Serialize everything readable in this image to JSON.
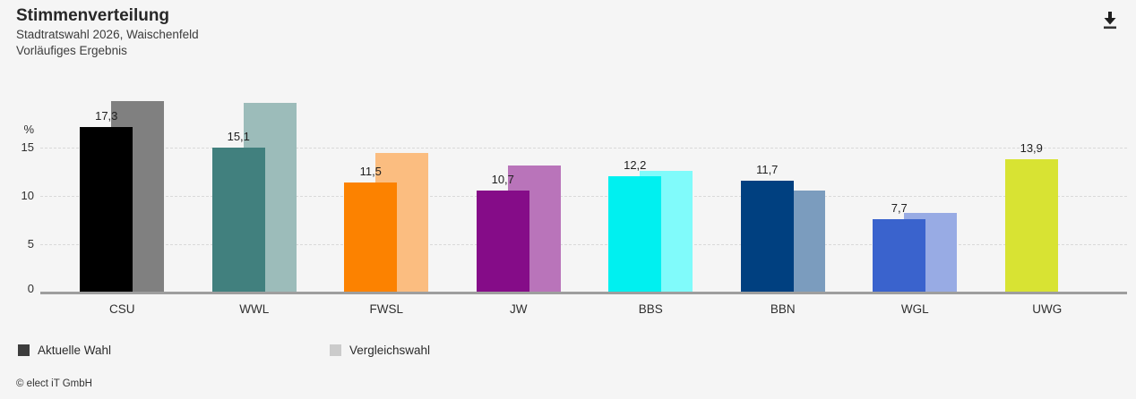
{
  "header": {
    "title": "Stimmenverteilung",
    "subtitle1": "Stadtratswahl 2026, Waischenfeld",
    "subtitle2": "Vorläufiges Ergebnis"
  },
  "chart_data": {
    "type": "bar",
    "title": "Stimmenverteilung",
    "subtitle": "Stadtratswahl 2026, Waischenfeld — Vorläufiges Ergebnis",
    "unit_label": "%",
    "ylim": [
      0,
      20
    ],
    "yticks": [
      15,
      10,
      5,
      0
    ],
    "grid": "dashed horizontal",
    "legend_position": "bottom",
    "categories": [
      "CSU",
      "WWL",
      "FWSL",
      "JW",
      "BBS",
      "BBN",
      "WGL",
      "UWG"
    ],
    "series": [
      {
        "name": "Aktuelle Wahl",
        "values": [
          17.3,
          15.1,
          11.5,
          10.7,
          12.2,
          11.7,
          7.7,
          13.9
        ],
        "labels": [
          "17,3",
          "15,1",
          "11,5",
          "10,7",
          "12,2",
          "11,7",
          "7,7",
          "13,9"
        ],
        "colors": [
          "#000000",
          "#41807e",
          "#fc8200",
          "#850c88",
          "#00f0f0",
          "#004080",
          "#3a63cd",
          "#d8e333"
        ]
      },
      {
        "name": "Vergleichswahl",
        "values": [
          20.0,
          19.8,
          14.6,
          13.3,
          12.7,
          10.7,
          8.4,
          null
        ],
        "labels": [
          null,
          null,
          null,
          null,
          null,
          null,
          null,
          null
        ],
        "colors": [
          "#808080",
          "#9cbcba",
          "#fbbd80",
          "#b974ba",
          "#80fbfb",
          "#7b9cbe",
          "#98abe4",
          null
        ]
      }
    ],
    "legend": [
      {
        "label": "Aktuelle Wahl",
        "swatch": "#3d3d3d"
      },
      {
        "label": "Vergleichswahl",
        "swatch": "#cbcbcb"
      }
    ]
  },
  "footer": {
    "copyright": "© elect iT GmbH"
  }
}
